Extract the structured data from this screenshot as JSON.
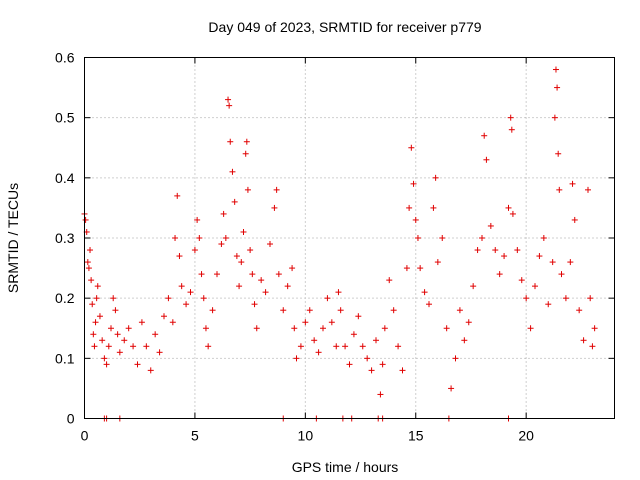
{
  "chart_data": {
    "type": "scatter",
    "title": "Day 049 of 2023, SRMTID for receiver p779",
    "xlabel": "GPS time / hours",
    "ylabel": "SRMTID / TECUs",
    "xlim": [
      0,
      24
    ],
    "ylim": [
      0,
      0.6
    ],
    "xticks": [
      0,
      5,
      10,
      15,
      20
    ],
    "xtick_labels": [
      "0",
      "5",
      "10",
      "15",
      "20"
    ],
    "yticks": [
      0,
      0.1,
      0.2,
      0.3,
      0.4,
      0.5,
      0.6
    ],
    "ytick_labels": [
      "0",
      "0.1",
      "0.2",
      "0.3",
      "0.4",
      "0.5",
      "0.6"
    ],
    "grid": true,
    "marker": "+",
    "color": "#e00000",
    "series": [
      {
        "name": "SRMTID",
        "points": [
          [
            0.0,
            0.34
          ],
          [
            0.05,
            0.33
          ],
          [
            0.1,
            0.31
          ],
          [
            0.15,
            0.26
          ],
          [
            0.2,
            0.25
          ],
          [
            0.25,
            0.28
          ],
          [
            0.3,
            0.23
          ],
          [
            0.35,
            0.19
          ],
          [
            0.4,
            0.14
          ],
          [
            0.45,
            0.12
          ],
          [
            0.5,
            0.16
          ],
          [
            0.55,
            0.2
          ],
          [
            0.6,
            0.22
          ],
          [
            0.7,
            0.17
          ],
          [
            0.8,
            0.13
          ],
          [
            0.9,
            0.1
          ],
          [
            1.0,
            0.09
          ],
          [
            1.1,
            0.12
          ],
          [
            1.2,
            0.15
          ],
          [
            1.3,
            0.2
          ],
          [
            1.4,
            0.18
          ],
          [
            1.5,
            0.14
          ],
          [
            1.6,
            0.11
          ],
          [
            1.8,
            0.13
          ],
          [
            2.0,
            0.15
          ],
          [
            2.2,
            0.12
          ],
          [
            2.4,
            0.09
          ],
          [
            2.6,
            0.16
          ],
          [
            2.8,
            0.12
          ],
          [
            3.0,
            0.08
          ],
          [
            3.2,
            0.14
          ],
          [
            3.4,
            0.11
          ],
          [
            3.6,
            0.17
          ],
          [
            3.8,
            0.2
          ],
          [
            4.0,
            0.16
          ],
          [
            4.1,
            0.3
          ],
          [
            4.2,
            0.37
          ],
          [
            4.3,
            0.27
          ],
          [
            4.4,
            0.22
          ],
          [
            4.6,
            0.19
          ],
          [
            4.8,
            0.21
          ],
          [
            5.0,
            0.28
          ],
          [
            5.1,
            0.33
          ],
          [
            5.2,
            0.3
          ],
          [
            5.3,
            0.24
          ],
          [
            5.4,
            0.2
          ],
          [
            5.5,
            0.15
          ],
          [
            5.6,
            0.12
          ],
          [
            5.8,
            0.18
          ],
          [
            6.0,
            0.24
          ],
          [
            6.2,
            0.29
          ],
          [
            6.3,
            0.34
          ],
          [
            6.4,
            0.3
          ],
          [
            6.5,
            0.53
          ],
          [
            6.55,
            0.52
          ],
          [
            6.6,
            0.46
          ],
          [
            6.7,
            0.41
          ],
          [
            6.8,
            0.36
          ],
          [
            6.9,
            0.27
          ],
          [
            7.0,
            0.22
          ],
          [
            7.1,
            0.26
          ],
          [
            7.2,
            0.31
          ],
          [
            7.3,
            0.44
          ],
          [
            7.35,
            0.46
          ],
          [
            7.4,
            0.38
          ],
          [
            7.5,
            0.28
          ],
          [
            7.6,
            0.24
          ],
          [
            7.7,
            0.19
          ],
          [
            7.8,
            0.15
          ],
          [
            8.0,
            0.23
          ],
          [
            8.2,
            0.21
          ],
          [
            8.4,
            0.29
          ],
          [
            8.6,
            0.35
          ],
          [
            8.7,
            0.38
          ],
          [
            8.8,
            0.24
          ],
          [
            9.0,
            0.18
          ],
          [
            9.2,
            0.22
          ],
          [
            9.4,
            0.25
          ],
          [
            9.5,
            0.15
          ],
          [
            9.6,
            0.1
          ],
          [
            9.8,
            0.12
          ],
          [
            10.0,
            0.16
          ],
          [
            10.2,
            0.18
          ],
          [
            10.4,
            0.13
          ],
          [
            10.6,
            0.11
          ],
          [
            10.8,
            0.15
          ],
          [
            11.0,
            0.2
          ],
          [
            11.2,
            0.16
          ],
          [
            11.4,
            0.12
          ],
          [
            11.5,
            0.21
          ],
          [
            11.6,
            0.18
          ],
          [
            11.8,
            0.12
          ],
          [
            12.0,
            0.09
          ],
          [
            12.2,
            0.14
          ],
          [
            12.4,
            0.17
          ],
          [
            12.6,
            0.12
          ],
          [
            12.8,
            0.1
          ],
          [
            13.0,
            0.08
          ],
          [
            13.2,
            0.13
          ],
          [
            13.4,
            0.04
          ],
          [
            13.5,
            0.09
          ],
          [
            13.6,
            0.15
          ],
          [
            13.8,
            0.23
          ],
          [
            14.0,
            0.18
          ],
          [
            14.2,
            0.12
          ],
          [
            14.4,
            0.08
          ],
          [
            14.6,
            0.25
          ],
          [
            14.7,
            0.35
          ],
          [
            14.8,
            0.45
          ],
          [
            14.9,
            0.39
          ],
          [
            15.0,
            0.33
          ],
          [
            15.1,
            0.3
          ],
          [
            15.2,
            0.25
          ],
          [
            15.4,
            0.21
          ],
          [
            15.6,
            0.19
          ],
          [
            15.8,
            0.35
          ],
          [
            15.9,
            0.4
          ],
          [
            16.0,
            0.26
          ],
          [
            16.2,
            0.3
          ],
          [
            16.4,
            0.15
          ],
          [
            16.6,
            0.05
          ],
          [
            16.8,
            0.1
          ],
          [
            17.0,
            0.18
          ],
          [
            17.2,
            0.13
          ],
          [
            17.4,
            0.16
          ],
          [
            17.6,
            0.22
          ],
          [
            17.8,
            0.28
          ],
          [
            18.0,
            0.3
          ],
          [
            18.1,
            0.47
          ],
          [
            18.2,
            0.43
          ],
          [
            18.4,
            0.32
          ],
          [
            18.6,
            0.28
          ],
          [
            18.8,
            0.24
          ],
          [
            19.0,
            0.27
          ],
          [
            19.2,
            0.35
          ],
          [
            19.3,
            0.5
          ],
          [
            19.35,
            0.48
          ],
          [
            19.4,
            0.34
          ],
          [
            19.6,
            0.28
          ],
          [
            19.8,
            0.23
          ],
          [
            20.0,
            0.2
          ],
          [
            20.2,
            0.15
          ],
          [
            20.4,
            0.22
          ],
          [
            20.6,
            0.27
          ],
          [
            20.8,
            0.3
          ],
          [
            21.0,
            0.19
          ],
          [
            21.2,
            0.26
          ],
          [
            21.3,
            0.5
          ],
          [
            21.35,
            0.58
          ],
          [
            21.4,
            0.55
          ],
          [
            21.45,
            0.44
          ],
          [
            21.5,
            0.38
          ],
          [
            21.6,
            0.24
          ],
          [
            21.8,
            0.2
          ],
          [
            22.0,
            0.26
          ],
          [
            22.1,
            0.39
          ],
          [
            22.2,
            0.33
          ],
          [
            22.4,
            0.18
          ],
          [
            22.6,
            0.13
          ],
          [
            22.8,
            0.38
          ],
          [
            22.9,
            0.2
          ],
          [
            23.0,
            0.12
          ],
          [
            23.1,
            0.15
          ]
        ]
      }
    ],
    "zero_markers_x": [
      0.9,
      1.0,
      1.6,
      9.0,
      10.5,
      11.7,
      12.1,
      13.3,
      13.5,
      16.5,
      19.2
    ]
  }
}
